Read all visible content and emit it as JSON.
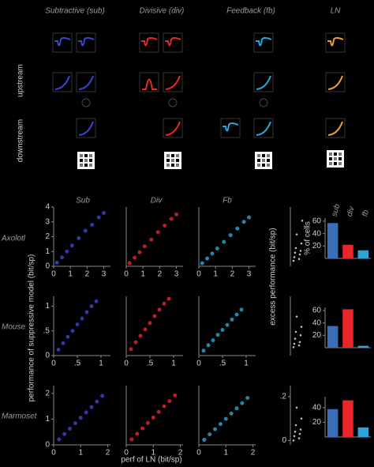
{
  "diagram": {
    "columns": [
      "Subtractive (sub)",
      "Divisive (div)",
      "Feedback (fb)",
      "LN"
    ],
    "rows": [
      "upstream",
      "downstream"
    ]
  },
  "panel_labels": {
    "columns": [
      "Sub",
      "Div",
      "Fb"
    ],
    "rows": [
      "Axolotl",
      "Mouse",
      "Marmoset"
    ],
    "ylabel": "performance of suppressive model (bit/sp)",
    "xlabel": "perf of LN (bit/sp)",
    "excess_label": "excess performance (bit/sp)"
  },
  "chart_data": [
    {
      "type": "scatter",
      "color": "#3a46d0",
      "x": [
        0.2,
        0.5,
        0.8,
        1.1,
        1.5,
        1.9,
        2.3,
        2.7,
        3.0
      ],
      "y": [
        0.25,
        0.6,
        1.0,
        1.4,
        1.9,
        2.4,
        2.8,
        3.3,
        3.6
      ],
      "xlim": [
        0,
        3.4
      ],
      "ylim": [
        0,
        4
      ],
      "xticks": [
        0,
        1,
        2,
        3
      ],
      "yticks": [
        0,
        1,
        2,
        3,
        4
      ]
    },
    {
      "type": "scatter",
      "color": "#e8262c",
      "x": [
        0.2,
        0.5,
        0.8,
        1.1,
        1.5,
        1.9,
        2.3,
        2.7,
        3.0
      ],
      "y": [
        0.22,
        0.58,
        0.95,
        1.35,
        1.8,
        2.3,
        2.75,
        3.2,
        3.5
      ],
      "xlim": [
        0,
        3.4
      ],
      "ylim": [
        0,
        4
      ],
      "xticks": [
        0,
        1,
        2,
        3
      ]
    },
    {
      "type": "scatter",
      "color": "#2aa6dc",
      "x": [
        0.2,
        0.5,
        0.8,
        1.1,
        1.5,
        1.9,
        2.3,
        2.7,
        3.0
      ],
      "y": [
        0.21,
        0.53,
        0.86,
        1.2,
        1.65,
        2.1,
        2.55,
        3.0,
        3.3
      ],
      "xlim": [
        0,
        3.4
      ],
      "ylim": [
        0,
        4
      ],
      "xticks": [
        0,
        1,
        2,
        3
      ]
    },
    {
      "type": "strip",
      "color": "#bbbbbb",
      "values": [
        0.01,
        0.03,
        0.05,
        0.08,
        0.1,
        0.12,
        0.15,
        0.2,
        0.3,
        0.45
      ],
      "ylim": [
        -0.05,
        0.6
      ]
    },
    {
      "type": "bar",
      "categories": [
        "sub",
        "div",
        "fb"
      ],
      "colors": [
        "#3a6fb8",
        "#e8262c",
        "#2aa6dc"
      ],
      "values": [
        57,
        22,
        13
      ],
      "ylim": [
        0,
        65
      ],
      "yticks": [
        20,
        40,
        60
      ],
      "ylabel": "% of cells"
    },
    {
      "type": "scatter",
      "color": "#3a46d0",
      "x": [
        0.1,
        0.2,
        0.3,
        0.4,
        0.5,
        0.6,
        0.7,
        0.8,
        0.9
      ],
      "y": [
        0.12,
        0.25,
        0.38,
        0.5,
        0.63,
        0.75,
        0.88,
        1.0,
        1.1
      ],
      "xlim": [
        0,
        1.2
      ],
      "ylim": [
        0,
        1.2
      ],
      "xticks": [
        0,
        {
          "value": 0.5,
          "label": ".5"
        },
        1
      ],
      "yticks": [
        0,
        {
          "value": 0.5,
          "label": ".5"
        },
        1
      ]
    },
    {
      "type": "scatter",
      "color": "#e8262c",
      "x": [
        0.1,
        0.2,
        0.3,
        0.4,
        0.5,
        0.6,
        0.7,
        0.8,
        0.9
      ],
      "y": [
        0.13,
        0.27,
        0.4,
        0.53,
        0.66,
        0.8,
        0.93,
        1.05,
        1.15
      ],
      "xlim": [
        0,
        1.2
      ],
      "ylim": [
        0,
        1.2
      ],
      "xticks": [
        0,
        {
          "value": 0.5,
          "label": ".5"
        },
        1
      ]
    },
    {
      "type": "scatter",
      "color": "#2aa6dc",
      "x": [
        0.1,
        0.2,
        0.3,
        0.4,
        0.5,
        0.6,
        0.7,
        0.8,
        0.9
      ],
      "y": [
        0.1,
        0.21,
        0.31,
        0.42,
        0.52,
        0.62,
        0.73,
        0.83,
        0.93
      ],
      "xlim": [
        0,
        1.2
      ],
      "ylim": [
        0,
        1.2
      ],
      "xticks": [
        0,
        {
          "value": 0.5,
          "label": ".5"
        },
        1
      ]
    },
    {
      "type": "strip",
      "color": "#bbbbbb",
      "values": [
        0.0,
        0.01,
        0.02,
        0.03,
        0.05,
        0.07,
        0.09,
        0.12,
        0.18
      ],
      "ylim": [
        -0.05,
        0.3
      ]
    },
    {
      "type": "bar",
      "categories": [
        null,
        null,
        null
      ],
      "colors": [
        "#3a6fb8",
        "#e8262c",
        "#2aa6dc"
      ],
      "values": [
        35,
        62,
        3
      ],
      "ylim": [
        0,
        65
      ],
      "yticks": [
        20,
        40,
        60
      ]
    },
    {
      "type": "scatter",
      "color": "#3a46d0",
      "x": [
        0.2,
        0.4,
        0.6,
        0.8,
        1.0,
        1.2,
        1.4,
        1.6,
        1.8
      ],
      "y": [
        0.21,
        0.42,
        0.63,
        0.84,
        1.05,
        1.26,
        1.47,
        1.68,
        1.9
      ],
      "xlim": [
        0,
        2.1
      ],
      "ylim": [
        0,
        2.3
      ],
      "xticks": [
        0,
        1,
        2
      ],
      "yticks": [
        0,
        1,
        2
      ]
    },
    {
      "type": "scatter",
      "color": "#e8262c",
      "x": [
        0.2,
        0.4,
        0.6,
        0.8,
        1.0,
        1.2,
        1.4,
        1.6,
        1.8
      ],
      "y": [
        0.21,
        0.43,
        0.64,
        0.85,
        1.06,
        1.28,
        1.5,
        1.7,
        1.92
      ],
      "xlim": [
        0,
        2.1
      ],
      "ylim": [
        0,
        2.3
      ],
      "xticks": [
        0,
        1,
        2
      ]
    },
    {
      "type": "scatter",
      "color": "#2aa6dc",
      "x": [
        0.2,
        0.4,
        0.6,
        0.8,
        1.0,
        1.2,
        1.4,
        1.6,
        1.8
      ],
      "y": [
        0.2,
        0.41,
        0.61,
        0.81,
        1.01,
        1.22,
        1.42,
        1.62,
        1.82
      ],
      "xlim": [
        0,
        2.1
      ],
      "ylim": [
        0,
        2.3
      ],
      "xticks": [
        0,
        1,
        2
      ]
    },
    {
      "type": "strip",
      "color": "#bbbbbb",
      "values": [
        0.0,
        0.01,
        0.02,
        0.03,
        0.04,
        0.05,
        0.07,
        0.1,
        0.15
      ],
      "ylim": [
        -0.02,
        0.25
      ],
      "yticks": [
        0,
        {
          "value": 0.2,
          "label": ".2"
        }
      ]
    },
    {
      "type": "bar",
      "categories": [
        null,
        null,
        null
      ],
      "colors": [
        "#3a6fb8",
        "#e8262c",
        "#2aa6dc"
      ],
      "values": [
        38,
        50,
        13
      ],
      "ylim": [
        0,
        55
      ],
      "yticks": [
        20,
        40
      ]
    }
  ]
}
